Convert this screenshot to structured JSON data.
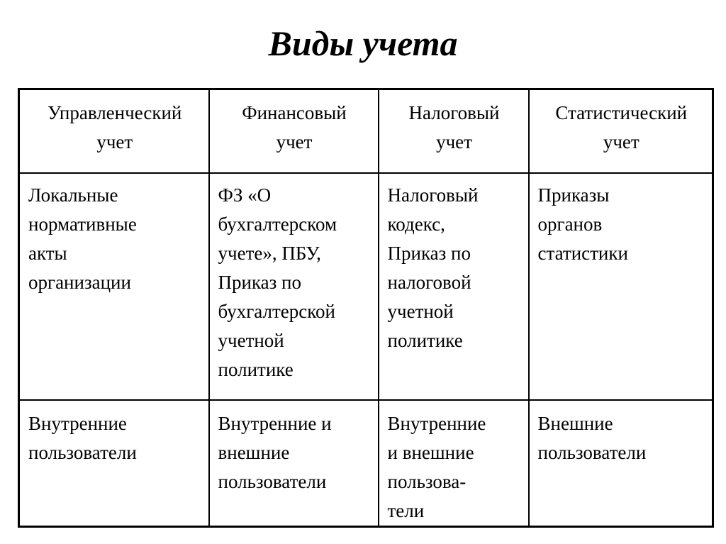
{
  "title": "Виды учета",
  "table": {
    "headers": [
      "Управленческий\nучет",
      "Финансовый\nучет",
      "Налоговый\nучет",
      "Статистический\nучет"
    ],
    "rows": [
      [
        "Локальные\nнормативные\nакты\nорганизации",
        "ФЗ «О\nбухгалтерском\nучете», ПБУ,\nПриказ по\nбухгалтерской\nучетной\nполитике",
        "Налоговый\nкодекс,\nПриказ по\nналоговой\nучетной\nполитике",
        "Приказы\nорганов\nстатистики"
      ],
      [
        "Внутренние\nпользователи",
        "Внутренние и\nвнешние\nпользователи",
        "Внутренние\nи внешние\nпользова-\nтели",
        "Внешние\nпользователи"
      ]
    ]
  }
}
